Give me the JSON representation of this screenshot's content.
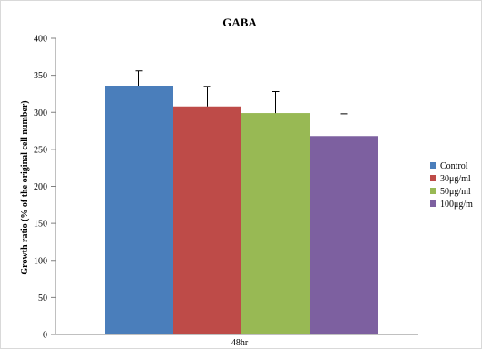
{
  "chart_data": {
    "type": "bar",
    "title": "GABA",
    "xlabel": "48hr",
    "ylabel": "Growth ratio (% of the original cell number)",
    "ylim": [
      0,
      400
    ],
    "yticks": [
      "0",
      "50",
      "100",
      "150",
      "200",
      "250",
      "300",
      "350",
      "400"
    ],
    "grid": false,
    "legend_position": "right",
    "categories": [
      "48hr"
    ],
    "series": [
      {
        "name": "Control",
        "values": [
          336
        ],
        "error": [
          20
        ],
        "color": "#4a7ebb"
      },
      {
        "name": "30μg/ml",
        "values": [
          308
        ],
        "error": [
          27
        ],
        "color": "#be4b48"
      },
      {
        "name": "50μg/ml",
        "values": [
          299
        ],
        "error": [
          29
        ],
        "color": "#98b954"
      },
      {
        "name": "100μg/m",
        "values": [
          268
        ],
        "error": [
          30
        ],
        "color": "#7d60a0"
      }
    ]
  }
}
